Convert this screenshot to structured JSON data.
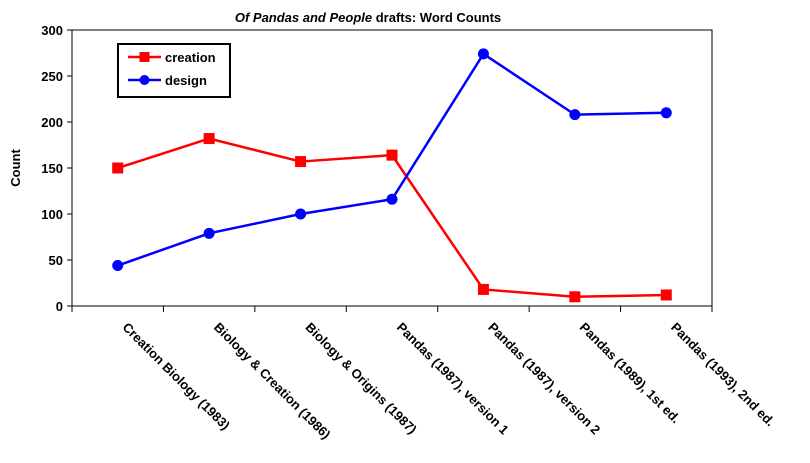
{
  "chart_data": {
    "type": "line",
    "title_italic": "Of Pandas and People",
    "title_rest": " drafts: Word Counts",
    "xlabel": "",
    "ylabel": "Count",
    "ylim": [
      0,
      300
    ],
    "yticks": [
      0,
      50,
      100,
      150,
      200,
      250,
      300
    ],
    "grid": false,
    "legend_position": "top-left",
    "categories": [
      "Creation Biology (1983)",
      "Biology & Creation (1986)",
      "Biology & Origins (1987)",
      "Pandas (1987), version 1",
      "Pandas (1987), version 2",
      "Pandas (1989), 1st ed.",
      "Pandas (1993), 2nd ed."
    ],
    "series": [
      {
        "name": "creation",
        "color": "#ff0000",
        "marker": "square",
        "values": [
          150,
          182,
          157,
          164,
          18,
          10,
          12
        ]
      },
      {
        "name": "design",
        "color": "#0000ff",
        "marker": "circle",
        "values": [
          44,
          79,
          100,
          116,
          274,
          208,
          210
        ]
      }
    ]
  }
}
